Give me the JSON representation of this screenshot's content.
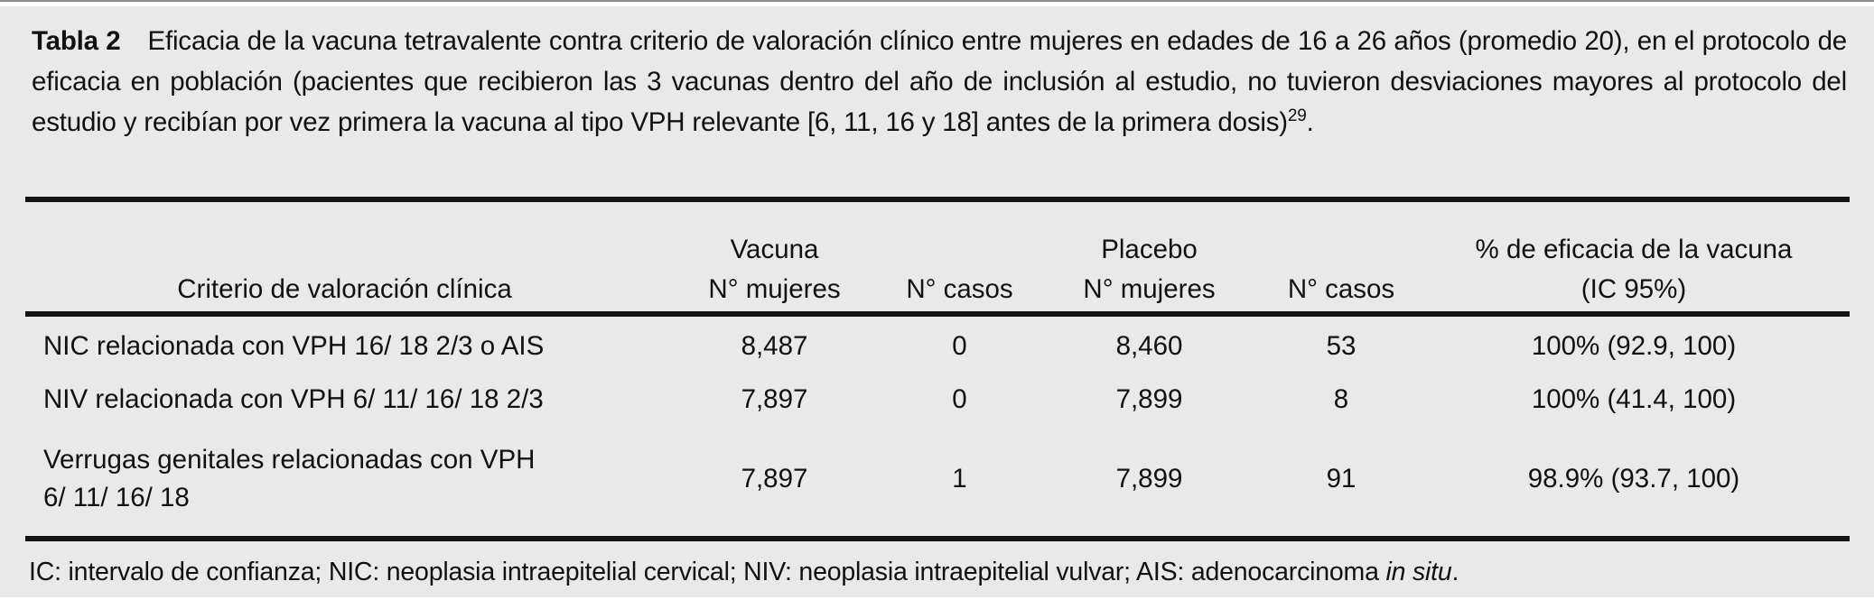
{
  "table": {
    "label": "Tabla 2",
    "caption": "Eficacia de la vacuna tetravalente contra criterio de valoración clínico entre mujeres en edades de 16 a 26 años (promedio 20), en el protocolo de eficacia en población (pacientes que recibieron las 3 vacunas dentro del año de inclusión al estudio, no tuvieron desviaciones mayores al protocolo del estudio y recibían por vez primera la vacuna al tipo VPH relevante [6, 11, 16 y 18] antes de la primera dosis)",
    "caption_ref": "29",
    "caption_end": ".",
    "header": {
      "criterio": "Criterio de valoración clínica",
      "group_vacuna": "Vacuna",
      "group_placebo": "Placebo",
      "group_eficacia": "% de eficacia de la vacuna",
      "sub_mujeres": "N° mujeres",
      "sub_casos": "N° casos",
      "sub_ic": "(IC 95%)"
    },
    "rows": [
      {
        "criterio": "NIC relacionada con VPH 16/ 18 2/3 o AIS",
        "vacuna_mujeres": "8,487",
        "vacuna_casos": "0",
        "placebo_mujeres": "8,460",
        "placebo_casos": "53",
        "eficacia": "100% (92.9, 100)"
      },
      {
        "criterio": "NIV relacionada con VPH 6/ 11/ 16/ 18 2/3",
        "vacuna_mujeres": "7,897",
        "vacuna_casos": "0",
        "placebo_mujeres": "7,899",
        "placebo_casos": "8",
        "eficacia": "100% (41.4, 100)"
      },
      {
        "criterio": "Verrugas genitales relacionadas con VPH",
        "criterio_line2": "6/ 11/ 16/ 18",
        "vacuna_mujeres": "7,897",
        "vacuna_casos": "1",
        "placebo_mujeres": "7,899",
        "placebo_casos": "91",
        "eficacia": "98.9% (93.7, 100)"
      }
    ],
    "footnote": {
      "text": "IC: intervalo de confianza; NIC: neoplasia intraepitelial cervical; NIV: neoplasia intraepitelial vulvar; AIS: adenocarcinoma",
      "italic": "in situ",
      "end": "."
    },
    "colors": {
      "panel_bg": "#e9e9e9",
      "rule": "#141414",
      "text": "#111111"
    }
  }
}
